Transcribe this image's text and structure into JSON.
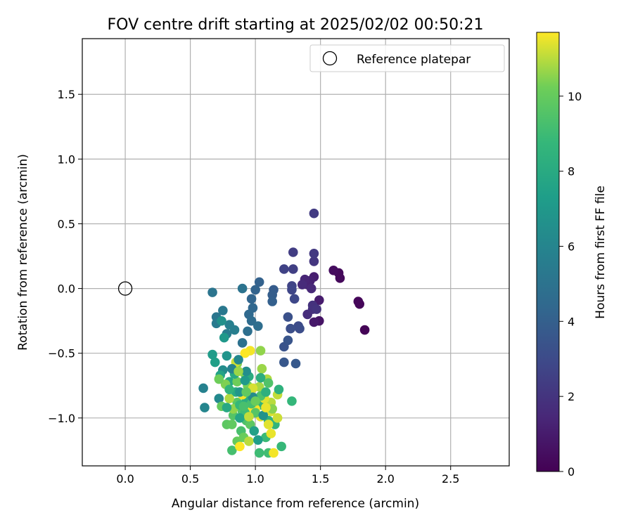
{
  "chart_data": {
    "type": "scatter",
    "title": "FOV centre drift starting at 2025/02/02 00:50:21",
    "xlabel": "Angular distance from reference (arcmin)",
    "ylabel": "Rotation from reference (arcmin)",
    "xlim": [
      -0.33,
      2.95
    ],
    "ylim": [
      -1.37,
      1.93
    ],
    "xticks": [
      0.0,
      0.5,
      1.0,
      1.5,
      2.0,
      2.5
    ],
    "xtick_labels": [
      "0.0",
      "0.5",
      "1.0",
      "1.5",
      "2.0",
      "2.5"
    ],
    "yticks": [
      -1.0,
      -0.5,
      0.0,
      0.5,
      1.0,
      1.5
    ],
    "ytick_labels": [
      "−1.0",
      "−0.5",
      "0.0",
      "0.5",
      "1.0",
      "1.5"
    ],
    "grid": true,
    "legend": {
      "placement": "top-right",
      "entries": [
        "Reference platepar"
      ]
    },
    "reference_point": {
      "name": "Reference platepar",
      "x": 0.0,
      "y": 0.0
    },
    "colorbar": {
      "label": "Hours from first FF file",
      "colormap": "viridis",
      "range": [
        0,
        11.7
      ],
      "ticks": [
        0,
        2,
        4,
        6,
        8,
        10
      ],
      "tick_labels": [
        "0",
        "2",
        "4",
        "6",
        "8",
        "10"
      ]
    },
    "series": [
      {
        "points": [
          [
            1.84,
            -0.32,
            0.1
          ],
          [
            1.79,
            -0.1,
            0.2
          ],
          [
            1.8,
            -0.12,
            0.2
          ],
          [
            1.65,
            0.08,
            0.3
          ],
          [
            1.64,
            0.12,
            0.3
          ],
          [
            1.6,
            0.14,
            0.4
          ],
          [
            1.49,
            -0.25,
            0.7
          ],
          [
            1.45,
            -0.26,
            0.9
          ],
          [
            1.49,
            -0.09,
            1.0
          ],
          [
            1.45,
            0.09,
            1.1
          ],
          [
            1.42,
            0.06,
            1.2
          ],
          [
            1.4,
            0.03,
            1.3
          ],
          [
            1.38,
            0.07,
            1.4
          ],
          [
            1.43,
            0.0,
            1.5
          ],
          [
            1.36,
            0.03,
            1.6
          ],
          [
            1.4,
            -0.2,
            1.7
          ],
          [
            1.44,
            -0.16,
            1.8
          ],
          [
            1.44,
            -0.13,
            1.9
          ],
          [
            1.47,
            -0.16,
            2.0
          ],
          [
            1.45,
            0.21,
            2.1
          ],
          [
            1.45,
            0.27,
            2.2
          ],
          [
            1.45,
            0.58,
            2.3
          ],
          [
            1.29,
            0.28,
            2.4
          ],
          [
            1.29,
            0.15,
            2.5
          ],
          [
            1.22,
            0.15,
            2.6
          ],
          [
            1.28,
            0.02,
            2.7
          ],
          [
            1.28,
            -0.01,
            2.8
          ],
          [
            1.3,
            -0.08,
            2.9
          ],
          [
            1.33,
            -0.29,
            3.0
          ],
          [
            1.34,
            -0.31,
            3.1
          ],
          [
            1.27,
            -0.31,
            3.2
          ],
          [
            1.25,
            -0.22,
            3.3
          ],
          [
            1.22,
            -0.45,
            3.4
          ],
          [
            1.25,
            -0.4,
            3.5
          ],
          [
            1.22,
            -0.57,
            3.6
          ],
          [
            1.31,
            -0.58,
            3.7
          ],
          [
            1.14,
            -0.01,
            3.8
          ],
          [
            1.13,
            -0.05,
            3.9
          ],
          [
            1.13,
            -0.1,
            4.0
          ],
          [
            1.03,
            0.05,
            4.1
          ],
          [
            1.0,
            -0.01,
            4.2
          ],
          [
            0.97,
            -0.08,
            4.3
          ],
          [
            0.98,
            -0.15,
            4.4
          ],
          [
            0.95,
            -0.2,
            4.5
          ],
          [
            0.97,
            -0.25,
            4.6
          ],
          [
            1.02,
            -0.29,
            4.7
          ],
          [
            0.94,
            -0.33,
            4.8
          ],
          [
            0.9,
            -0.42,
            4.9
          ],
          [
            0.9,
            0.0,
            5.0
          ],
          [
            0.67,
            -0.03,
            5.1
          ],
          [
            0.7,
            -0.22,
            5.2
          ],
          [
            0.75,
            -0.17,
            5.3
          ],
          [
            0.7,
            -0.27,
            5.4
          ],
          [
            0.78,
            -0.35,
            5.5
          ],
          [
            0.84,
            -0.32,
            5.6
          ],
          [
            0.8,
            -0.28,
            5.7
          ],
          [
            0.6,
            -0.77,
            5.8
          ],
          [
            0.61,
            -0.92,
            6.0
          ],
          [
            0.72,
            -0.85,
            6.2
          ],
          [
            0.75,
            -0.63,
            6.4
          ],
          [
            0.74,
            -0.25,
            6.6
          ],
          [
            0.78,
            -0.52,
            6.8
          ],
          [
            0.76,
            -0.38,
            7.0
          ],
          [
            0.67,
            -0.51,
            7.2
          ],
          [
            0.69,
            -0.57,
            7.4
          ],
          [
            0.73,
            -0.67,
            7.6
          ],
          [
            0.8,
            -0.72,
            7.8
          ],
          [
            0.85,
            -0.8,
            8.0
          ],
          [
            0.93,
            -0.86,
            8.2
          ],
          [
            1.05,
            -0.9,
            8.4
          ],
          [
            1.1,
            -1.02,
            8.5
          ],
          [
            1.15,
            -1.05,
            8.6
          ],
          [
            1.28,
            -0.87,
            8.7
          ],
          [
            1.2,
            -1.22,
            8.8
          ],
          [
            1.08,
            -1.15,
            8.9
          ],
          [
            1.03,
            -1.27,
            9.0
          ],
          [
            1.1,
            -1.27,
            9.1
          ],
          [
            0.82,
            -1.25,
            9.2
          ],
          [
            0.89,
            -1.1,
            9.3
          ],
          [
            0.93,
            -1.02,
            9.4
          ],
          [
            0.9,
            -0.95,
            9.5
          ],
          [
            0.83,
            -0.98,
            9.6
          ],
          [
            0.86,
            -0.88,
            9.7
          ],
          [
            0.78,
            -1.05,
            9.8
          ],
          [
            0.82,
            -1.05,
            9.9
          ],
          [
            0.86,
            -1.18,
            10.0
          ],
          [
            0.91,
            -1.15,
            10.1
          ],
          [
            0.86,
            -0.72,
            10.2
          ],
          [
            0.94,
            -0.75,
            10.3
          ],
          [
            0.92,
            -0.66,
            10.4
          ],
          [
            0.86,
            -0.58,
            10.5
          ],
          [
            1.04,
            -0.48,
            10.6
          ],
          [
            1.05,
            -0.62,
            10.7
          ],
          [
            1.03,
            -0.76,
            10.8
          ],
          [
            1.09,
            -0.7,
            10.9
          ],
          [
            1.12,
            -0.88,
            11.0
          ],
          [
            1.17,
            -0.82,
            11.1
          ],
          [
            1.17,
            -1.0,
            11.2
          ],
          [
            1.12,
            -0.95,
            11.3
          ],
          [
            1.1,
            -1.05,
            11.4
          ],
          [
            1.04,
            -0.99,
            11.5
          ],
          [
            1.0,
            -0.93,
            11.6
          ],
          [
            0.96,
            -0.48,
            11.6
          ],
          [
            0.92,
            -0.5,
            11.7
          ],
          [
            0.95,
            -0.92,
            11.7
          ],
          [
            0.88,
            -1.22,
            11.7
          ],
          [
            0.9,
            -0.82,
            11.6
          ],
          [
            1.14,
            -1.27,
            11.6
          ],
          [
            1.12,
            -1.12,
            11.5
          ],
          [
            1.07,
            -0.85,
            11.4
          ],
          [
            0.98,
            -0.77,
            11.3
          ],
          [
            0.85,
            -0.57,
            11.2
          ],
          [
            0.95,
            -1.18,
            11.0
          ],
          [
            0.8,
            -0.85,
            10.9
          ],
          [
            0.83,
            -0.93,
            10.6
          ],
          [
            0.77,
            -0.74,
            10.4
          ],
          [
            0.72,
            -0.7,
            10.2
          ],
          [
            0.74,
            -0.91,
            10.0
          ],
          [
            0.96,
            -1.05,
            9.8
          ],
          [
            1.0,
            -0.96,
            9.6
          ],
          [
            1.04,
            -0.83,
            9.4
          ],
          [
            0.97,
            -0.89,
            9.2
          ],
          [
            0.92,
            -0.96,
            9.0
          ],
          [
            0.88,
            -0.9,
            8.8
          ],
          [
            0.8,
            -0.78,
            8.6
          ],
          [
            1.18,
            -0.78,
            8.4
          ],
          [
            1.08,
            -0.8,
            8.3
          ],
          [
            1.04,
            -0.69,
            8.2
          ],
          [
            0.95,
            -0.68,
            8.1
          ],
          [
            0.84,
            -0.66,
            8.0
          ],
          [
            0.78,
            -0.92,
            7.9
          ],
          [
            0.88,
            -1.0,
            7.7
          ],
          [
            0.99,
            -1.1,
            7.5
          ],
          [
            1.02,
            -1.17,
            7.3
          ],
          [
            0.92,
            -0.71,
            7.1
          ],
          [
            0.88,
            -0.8,
            6.9
          ],
          [
            1.06,
            -0.98,
            6.7
          ],
          [
            0.93,
            -0.64,
            6.5
          ],
          [
            0.98,
            -0.84,
            6.3
          ],
          [
            0.87,
            -0.55,
            6.1
          ],
          [
            0.82,
            -0.62,
            5.9
          ],
          [
            1.1,
            -0.73,
            9.5
          ],
          [
            1.13,
            -0.93,
            10.5
          ],
          [
            1.0,
            -0.87,
            10.1
          ],
          [
            0.93,
            -0.8,
            9.9
          ],
          [
            0.95,
            -0.99,
            11.1
          ],
          [
            1.08,
            -0.92,
            11.5
          ],
          [
            0.87,
            -0.64,
            10.7
          ],
          [
            0.91,
            -0.91,
            9.3
          ]
        ]
      }
    ]
  }
}
